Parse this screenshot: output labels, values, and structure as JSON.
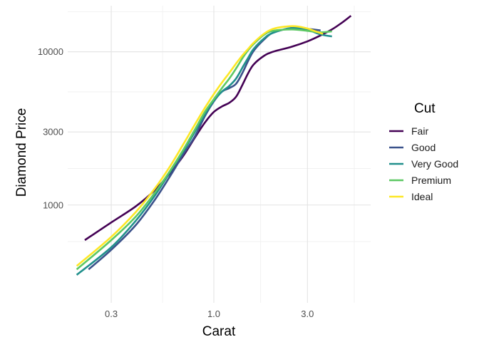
{
  "chart_data": {
    "type": "line",
    "title": "",
    "xlabel": "Carat",
    "ylabel": "Diamond Price",
    "x_scale": "log10",
    "y_scale": "log10",
    "xlim": [
      0.18,
      6.3
    ],
    "ylim": [
      230,
      20000
    ],
    "x_ticks": [
      0.3,
      1.0,
      3.0
    ],
    "x_tick_labels": [
      "0.3",
      "1.0",
      "3.0"
    ],
    "y_ticks": [
      1000,
      3000,
      10000
    ],
    "y_tick_labels": [
      "1000",
      "3000",
      "10000"
    ],
    "grid": true,
    "legend": {
      "title": "Cut",
      "position": "right"
    },
    "series": [
      {
        "name": "Fair",
        "color": "#440154",
        "points": [
          [
            0.22,
            590
          ],
          [
            0.3,
            770
          ],
          [
            0.4,
            980
          ],
          [
            0.5,
            1250
          ],
          [
            0.6,
            1620
          ],
          [
            0.7,
            2100
          ],
          [
            0.8,
            2750
          ],
          [
            0.9,
            3450
          ],
          [
            1.0,
            4050
          ],
          [
            1.1,
            4400
          ],
          [
            1.2,
            4650
          ],
          [
            1.3,
            5100
          ],
          [
            1.4,
            6100
          ],
          [
            1.5,
            7300
          ],
          [
            1.6,
            8300
          ],
          [
            1.8,
            9400
          ],
          [
            2.0,
            10000
          ],
          [
            2.5,
            10800
          ],
          [
            3.0,
            11700
          ],
          [
            3.5,
            12800
          ],
          [
            4.0,
            14000
          ],
          [
            4.5,
            15500
          ],
          [
            5.0,
            17200
          ]
        ]
      },
      {
        "name": "Good",
        "color": "#3b528b",
        "points": [
          [
            0.23,
            380
          ],
          [
            0.3,
            510
          ],
          [
            0.4,
            740
          ],
          [
            0.5,
            1080
          ],
          [
            0.6,
            1550
          ],
          [
            0.7,
            2150
          ],
          [
            0.8,
            2800
          ],
          [
            0.9,
            3800
          ],
          [
            1.0,
            4750
          ],
          [
            1.1,
            5500
          ],
          [
            1.2,
            5800
          ],
          [
            1.3,
            6200
          ],
          [
            1.4,
            7300
          ],
          [
            1.5,
            8800
          ],
          [
            1.6,
            10200
          ],
          [
            1.8,
            12000
          ],
          [
            2.0,
            13300
          ],
          [
            2.5,
            14300
          ],
          [
            3.0,
            14100
          ],
          [
            3.5,
            13800
          ]
        ]
      },
      {
        "name": "Very Good",
        "color": "#21908c",
        "points": [
          [
            0.2,
            350
          ],
          [
            0.3,
            530
          ],
          [
            0.4,
            790
          ],
          [
            0.5,
            1150
          ],
          [
            0.6,
            1650
          ],
          [
            0.7,
            2250
          ],
          [
            0.8,
            3000
          ],
          [
            0.9,
            3900
          ],
          [
            1.0,
            4800
          ],
          [
            1.1,
            5500
          ],
          [
            1.2,
            6000
          ],
          [
            1.3,
            6700
          ],
          [
            1.4,
            7900
          ],
          [
            1.5,
            9200
          ],
          [
            1.6,
            10500
          ],
          [
            1.8,
            12200
          ],
          [
            2.0,
            13300
          ],
          [
            2.5,
            14300
          ],
          [
            3.0,
            13900
          ],
          [
            3.5,
            13000
          ],
          [
            4.0,
            12600
          ]
        ]
      },
      {
        "name": "Premium",
        "color": "#5dc863",
        "points": [
          [
            0.2,
            380
          ],
          [
            0.3,
            590
          ],
          [
            0.4,
            840
          ],
          [
            0.5,
            1200
          ],
          [
            0.6,
            1680
          ],
          [
            0.7,
            2300
          ],
          [
            0.8,
            3100
          ],
          [
            0.9,
            4050
          ],
          [
            1.0,
            4900
          ],
          [
            1.1,
            5800
          ],
          [
            1.2,
            6700
          ],
          [
            1.3,
            7800
          ],
          [
            1.4,
            9100
          ],
          [
            1.5,
            10300
          ],
          [
            1.6,
            11300
          ],
          [
            1.8,
            12900
          ],
          [
            2.0,
            13700
          ],
          [
            2.5,
            14000
          ],
          [
            3.0,
            13700
          ],
          [
            3.5,
            13400
          ],
          [
            4.0,
            13600
          ]
        ]
      },
      {
        "name": "Ideal",
        "color": "#fde725",
        "points": [
          [
            0.2,
            400
          ],
          [
            0.3,
            620
          ],
          [
            0.4,
            900
          ],
          [
            0.5,
            1280
          ],
          [
            0.6,
            1800
          ],
          [
            0.7,
            2500
          ],
          [
            0.8,
            3350
          ],
          [
            0.9,
            4300
          ],
          [
            1.0,
            5300
          ],
          [
            1.1,
            6300
          ],
          [
            1.2,
            7300
          ],
          [
            1.3,
            8400
          ],
          [
            1.4,
            9500
          ],
          [
            1.5,
            10500
          ],
          [
            1.6,
            11500
          ],
          [
            1.8,
            13100
          ],
          [
            2.0,
            14100
          ],
          [
            2.3,
            14600
          ],
          [
            2.6,
            14700
          ],
          [
            3.0,
            14200
          ],
          [
            3.3,
            13600
          ],
          [
            3.6,
            13100
          ]
        ]
      }
    ]
  }
}
